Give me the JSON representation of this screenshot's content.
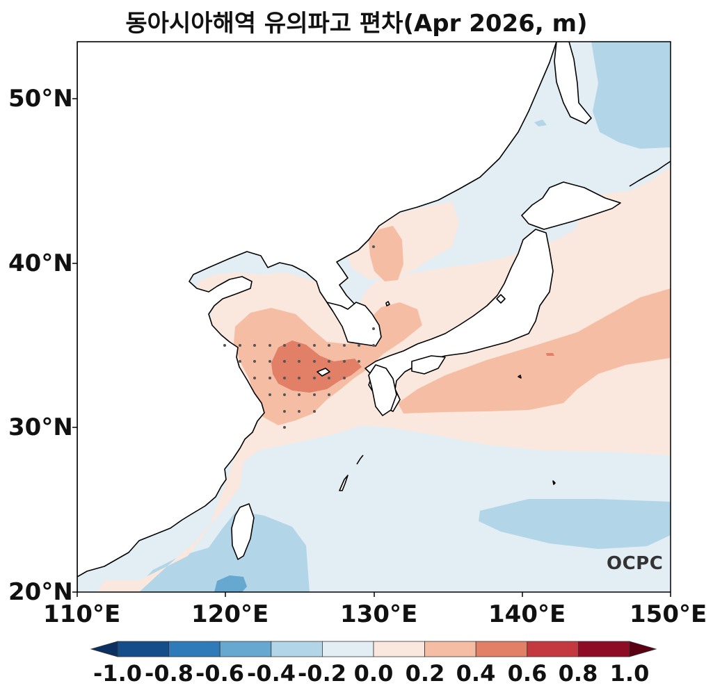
{
  "title": "동아시아해역 유의파고 편차(Apr 2026, m)",
  "y_ticks": [
    "50°N",
    "40°N",
    "30°N",
    "20°N"
  ],
  "x_ticks": [
    "110°E",
    "120°E",
    "130°E",
    "140°E",
    "150°E"
  ],
  "colorbar": {
    "labels": [
      "-1.0",
      "-0.8",
      "-0.6",
      "-0.4",
      "-0.2",
      "0.0",
      "0.2",
      "0.4",
      "0.6",
      "0.8",
      "1.0"
    ],
    "colors": [
      "#0a3161",
      "#154c8a",
      "#2f7ab9",
      "#67a8d1",
      "#b2d6e7",
      "#e2eef4",
      "#fae8de",
      "#f5bea4",
      "#e17f67",
      "#c4383f",
      "#8e0c25",
      "#5a0013"
    ]
  },
  "watermark": "OCPC",
  "map": {
    "extent": {
      "lon": [
        110,
        150
      ],
      "lat": [
        20,
        53.5
      ]
    },
    "background_anomaly": "0.0 to -0.2",
    "colors": {
      "ocean_base": "#e2eef4",
      "land": "#ffffff",
      "coastline": "#000000",
      "stipple": "#555555"
    }
  }
}
